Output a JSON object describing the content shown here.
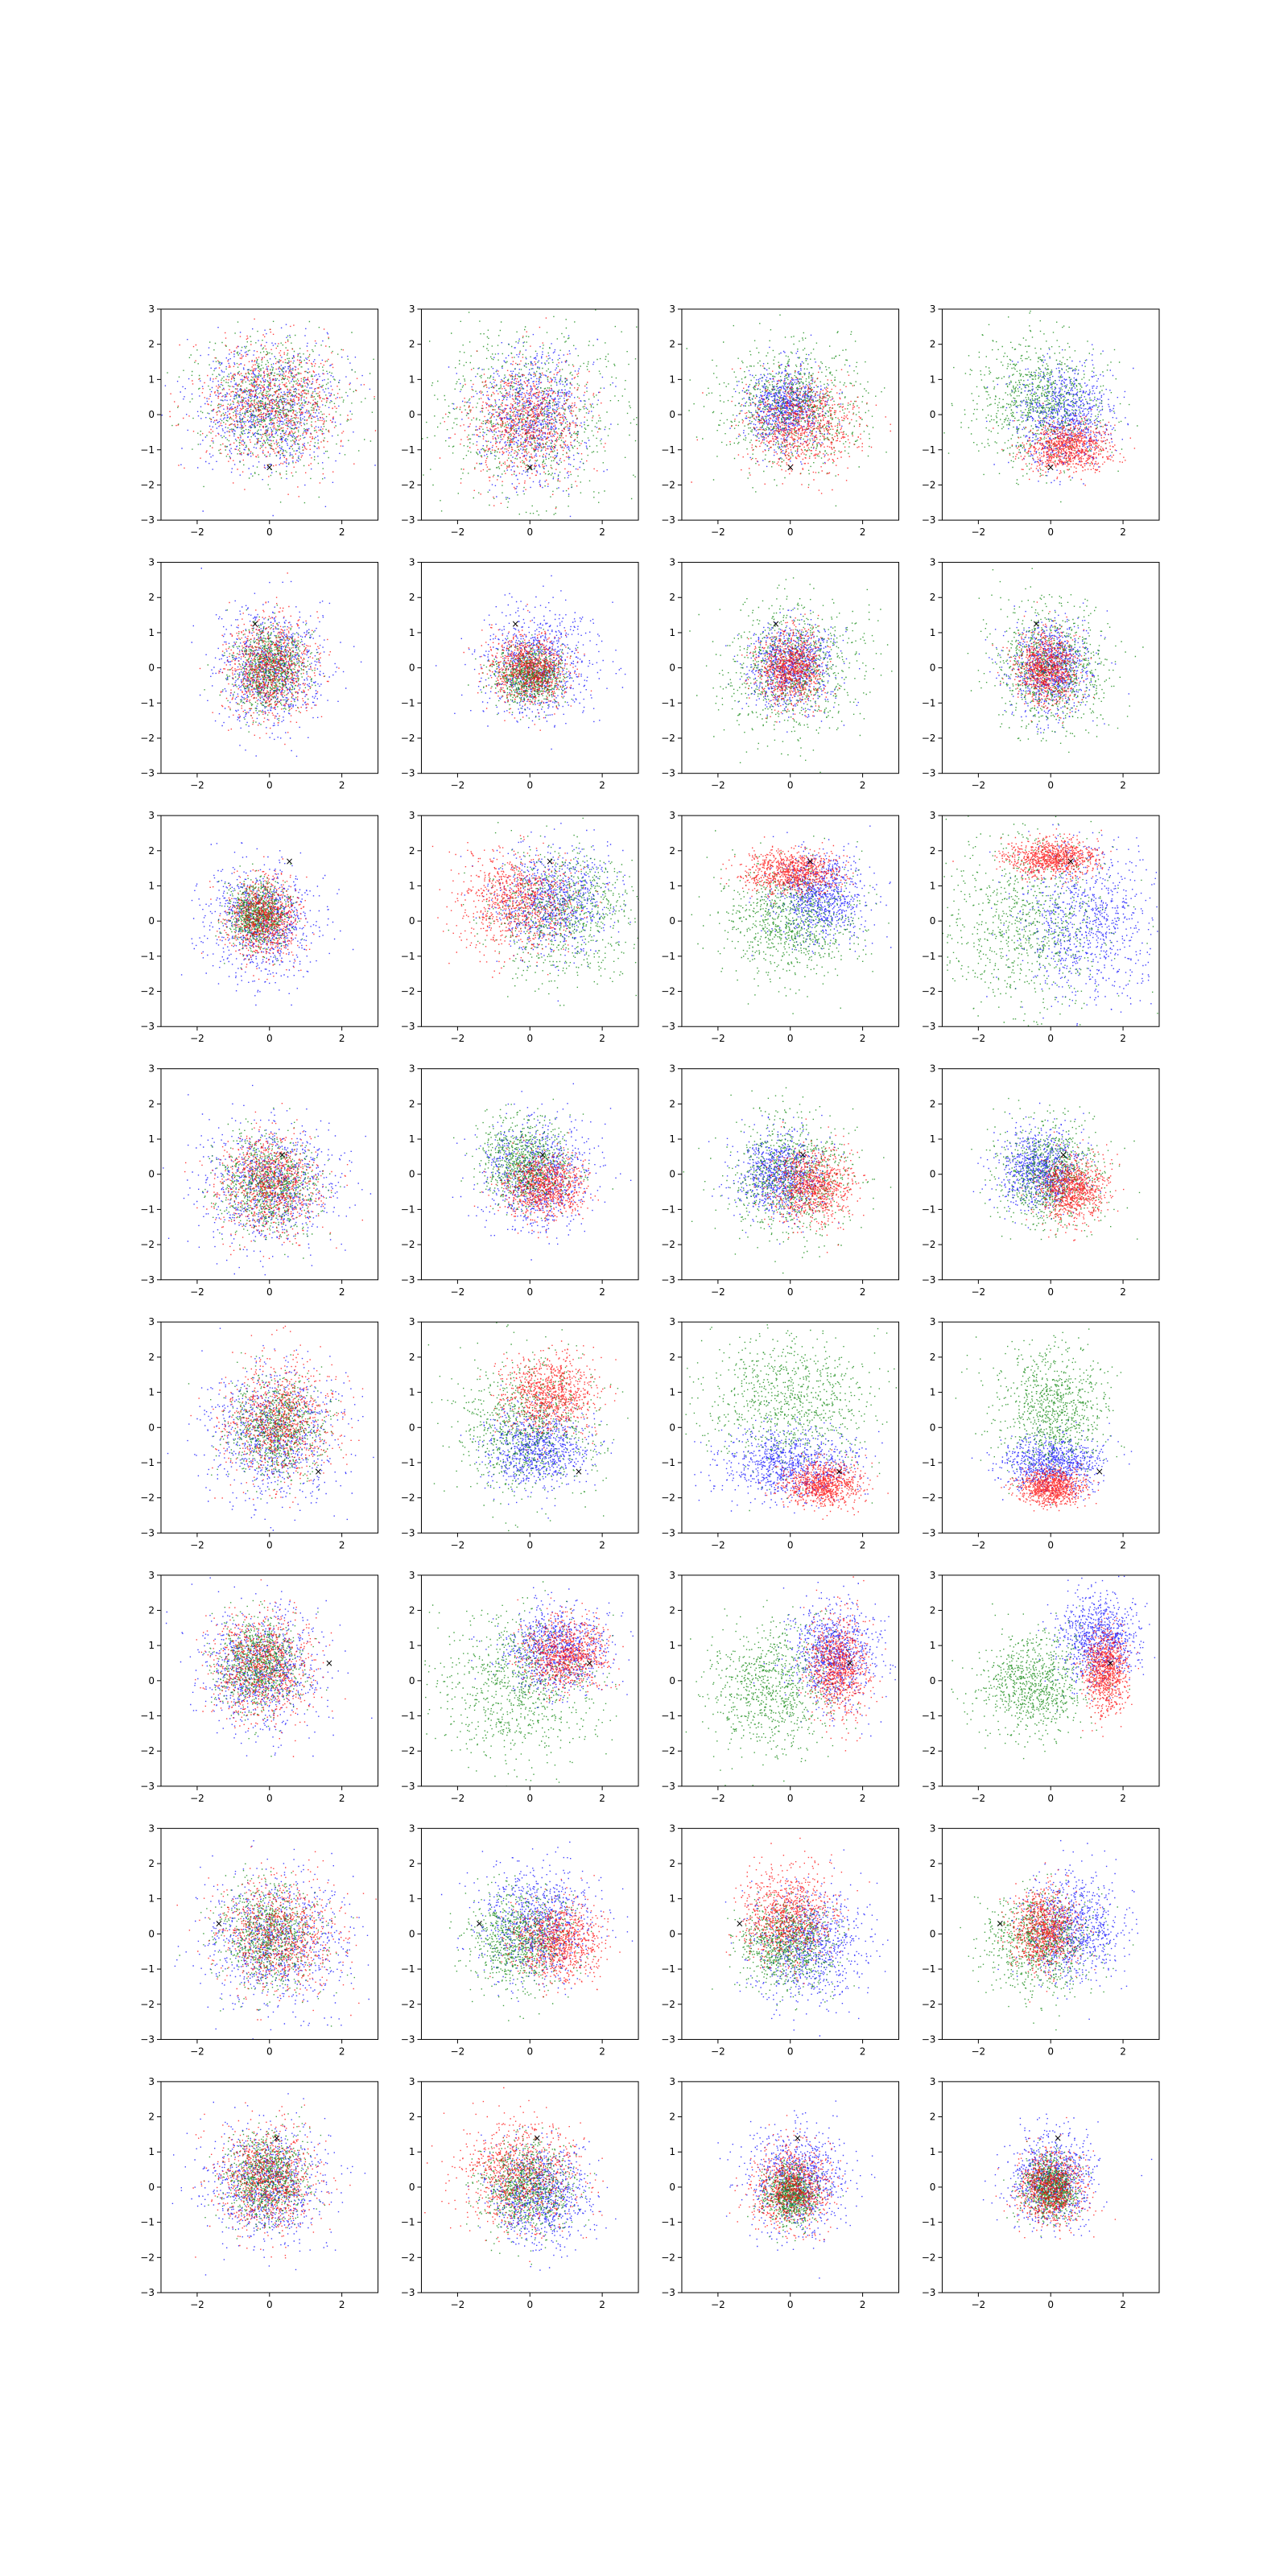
{
  "figure": {
    "rows": 8,
    "cols": 4
  },
  "chart_data": {
    "type": "scatter",
    "description_grid": "8 rows x 4 columns of scatter subplots (cloud of 2-D points in three colours, with one black x marker per row)",
    "xlim": [
      -3,
      3
    ],
    "ylim": [
      -3,
      3
    ],
    "xticks": [
      -2,
      0,
      2
    ],
    "yticks": [
      -3,
      -2,
      -1,
      0,
      1,
      2,
      3
    ],
    "grid": false,
    "legend": "none",
    "series_colors": {
      "blue": "#0000ff",
      "green": "#008000",
      "red": "#ff0000"
    },
    "marker_symbol": "×",
    "marker_color": "#000000",
    "markers_by_row": [
      {
        "x": 0.0,
        "y": -1.5
      },
      {
        "x": -0.4,
        "y": 1.25
      },
      {
        "x": 0.55,
        "y": 1.7
      },
      {
        "x": 0.35,
        "y": 0.55
      },
      {
        "x": 1.35,
        "y": -1.25
      },
      {
        "x": 1.65,
        "y": 0.5
      },
      {
        "x": -1.4,
        "y": 0.3
      },
      {
        "x": 0.2,
        "y": 1.4
      }
    ],
    "panels": [
      [
        {
          "blue": {
            "cx": 0,
            "cy": 0.2,
            "sx": 1,
            "sy": 0.9
          },
          "green": {
            "cx": 0.1,
            "cy": 0.3,
            "sx": 0.95,
            "sy": 0.9
          },
          "red": {
            "cx": 0.1,
            "cy": 0.3,
            "sx": 0.95,
            "sy": 0.9
          }
        },
        {
          "green": {
            "cx": 0,
            "cy": 0,
            "sx": 1.35,
            "sy": 1.25
          },
          "blue": {
            "cx": 0.1,
            "cy": 0,
            "sx": 0.8,
            "sy": 0.9
          },
          "red": {
            "cx": -0.1,
            "cy": -0.2,
            "sx": 0.8,
            "sy": 0.8
          }
        },
        {
          "green": {
            "cx": 0,
            "cy": 0.3,
            "sx": 1,
            "sy": 0.9
          },
          "red": {
            "cx": 0.3,
            "cy": -0.2,
            "sx": 0.75,
            "sy": 0.65
          },
          "blue": {
            "cx": -0.1,
            "cy": 0.2,
            "sx": 0.55,
            "sy": 0.55
          }
        },
        {
          "green": {
            "cx": -0.3,
            "cy": 0.4,
            "sx": 0.9,
            "sy": 0.9
          },
          "blue": {
            "cx": 0.4,
            "cy": 0,
            "sx": 0.65,
            "sy": 0.75
          },
          "red": {
            "cx": 0.5,
            "cy": -0.9,
            "sx": 0.55,
            "sy": 0.35
          }
        }
      ],
      [
        {
          "blue": {
            "cx": 0,
            "cy": 0,
            "sx": 0.7,
            "sy": 0.85
          },
          "red": {
            "cx": 0,
            "cy": 0,
            "sx": 0.6,
            "sy": 0.7
          },
          "green": {
            "cx": 0,
            "cy": 0,
            "sx": 0.5,
            "sy": 0.6
          }
        },
        {
          "blue": {
            "cx": 0.2,
            "cy": 0.1,
            "sx": 0.75,
            "sy": 0.75
          },
          "red": {
            "cx": 0,
            "cy": 0,
            "sx": 0.55,
            "sy": 0.5
          },
          "green": {
            "cx": 0,
            "cy": -0.2,
            "sx": 0.45,
            "sy": 0.4
          }
        },
        {
          "green": {
            "cx": 0,
            "cy": 0,
            "sx": 1,
            "sy": 0.95
          },
          "blue": {
            "cx": 0,
            "cy": 0.1,
            "sx": 0.6,
            "sy": 0.6
          },
          "red": {
            "cx": 0,
            "cy": 0,
            "sx": 0.45,
            "sy": 0.5
          }
        },
        {
          "green": {
            "cx": 0,
            "cy": 0,
            "sx": 0.8,
            "sy": 0.85
          },
          "blue": {
            "cx": 0,
            "cy": 0,
            "sx": 0.55,
            "sy": 0.65
          },
          "red": {
            "cx": -0.1,
            "cy": 0,
            "sx": 0.4,
            "sy": 0.5
          }
        }
      ],
      [
        {
          "blue": {
            "cx": -0.2,
            "cy": 0,
            "sx": 0.75,
            "sy": 0.75
          },
          "red": {
            "cx": -0.2,
            "cy": 0.1,
            "sx": 0.5,
            "sy": 0.55
          },
          "green": {
            "cx": -0.3,
            "cy": 0.2,
            "sx": 0.4,
            "sy": 0.45
          }
        },
        {
          "green": {
            "cx": 0.9,
            "cy": 0.3,
            "sx": 1,
            "sy": 0.9
          },
          "blue": {
            "cx": 0.6,
            "cy": 0.6,
            "sx": 0.8,
            "sy": 0.75
          },
          "red": {
            "cx": -0.4,
            "cy": 0.6,
            "sx": 0.8,
            "sy": 0.7
          }
        },
        {
          "green": {
            "cx": 0,
            "cy": 0,
            "sx": 0.9,
            "sy": 0.8
          },
          "blue": {
            "cx": 0.8,
            "cy": 0.7,
            "sx": 0.6,
            "sy": 0.6
          },
          "red": {
            "cx": 0,
            "cy": 1.4,
            "sx": 0.65,
            "sy": 0.3
          }
        },
        {
          "green": {
            "cx": -0.7,
            "cy": 0,
            "sx": 1.2,
            "sy": 1.3
          },
          "blue": {
            "cx": 0.9,
            "cy": 0,
            "sx": 0.9,
            "sy": 1.1
          },
          "red": {
            "cx": 0,
            "cy": 1.8,
            "sx": 0.6,
            "sy": 0.25
          }
        }
      ],
      [
        {
          "blue": {
            "cx": 0,
            "cy": -0.3,
            "sx": 0.9,
            "sy": 0.85
          },
          "red": {
            "cx": 0,
            "cy": -0.3,
            "sx": 0.7,
            "sy": 0.7
          },
          "green": {
            "cx": 0,
            "cy": -0.3,
            "sx": 0.65,
            "sy": 0.65
          }
        },
        {
          "blue": {
            "cx": 0.2,
            "cy": 0,
            "sx": 0.75,
            "sy": 0.75
          },
          "green": {
            "cx": -0.1,
            "cy": 0.3,
            "sx": 0.6,
            "sy": 0.6
          },
          "red": {
            "cx": 0.4,
            "cy": -0.3,
            "sx": 0.55,
            "sy": 0.45
          }
        },
        {
          "green": {
            "cx": 0,
            "cy": 0,
            "sx": 0.85,
            "sy": 0.85
          },
          "blue": {
            "cx": -0.3,
            "cy": 0,
            "sx": 0.6,
            "sy": 0.6
          },
          "red": {
            "cx": 0.6,
            "cy": -0.3,
            "sx": 0.55,
            "sy": 0.5
          }
        },
        {
          "green": {
            "cx": 0,
            "cy": 0,
            "sx": 0.75,
            "sy": 0.75
          },
          "blue": {
            "cx": -0.3,
            "cy": 0.1,
            "sx": 0.55,
            "sy": 0.55
          },
          "red": {
            "cx": 0.6,
            "cy": -0.4,
            "sx": 0.45,
            "sy": 0.45
          }
        }
      ],
      [
        {
          "blue": {
            "cx": 0.1,
            "cy": -0.1,
            "sx": 0.9,
            "sy": 0.95
          },
          "red": {
            "cx": 0.3,
            "cy": 0.2,
            "sx": 0.75,
            "sy": 0.85
          },
          "green": {
            "cx": 0.2,
            "cy": 0,
            "sx": 0.65,
            "sy": 0.7
          }
        },
        {
          "green": {
            "cx": -0.1,
            "cy": 0,
            "sx": 1,
            "sy": 1
          },
          "red": {
            "cx": 0.5,
            "cy": 1,
            "sx": 0.65,
            "sy": 0.55
          },
          "blue": {
            "cx": 0.2,
            "cy": -0.6,
            "sx": 0.7,
            "sy": 0.55
          }
        },
        {
          "green": {
            "cx": 0,
            "cy": 0.8,
            "sx": 1.15,
            "sy": 1
          },
          "blue": {
            "cx": 0,
            "cy": -1,
            "sx": 0.9,
            "sy": 0.5
          },
          "red": {
            "cx": 0.9,
            "cy": -1.6,
            "sx": 0.5,
            "sy": 0.3
          }
        },
        {
          "green": {
            "cx": 0,
            "cy": 0.5,
            "sx": 0.75,
            "sy": 0.85
          },
          "blue": {
            "cx": 0,
            "cy": -1,
            "sx": 0.7,
            "sy": 0.4
          },
          "red": {
            "cx": 0,
            "cy": -1.7,
            "sx": 0.45,
            "sy": 0.25
          }
        }
      ],
      [
        {
          "blue": {
            "cx": -0.2,
            "cy": 0.3,
            "sx": 0.85,
            "sy": 0.85
          },
          "red": {
            "cx": -0.2,
            "cy": 0.4,
            "sx": 0.7,
            "sy": 0.75
          },
          "green": {
            "cx": -0.3,
            "cy": 0.5,
            "sx": 0.55,
            "sy": 0.65
          }
        },
        {
          "green": {
            "cx": -0.4,
            "cy": -0.2,
            "sx": 1.1,
            "sy": 1.05
          },
          "blue": {
            "cx": 0.7,
            "cy": 0.9,
            "sx": 0.7,
            "sy": 0.6
          },
          "red": {
            "cx": 1,
            "cy": 0.8,
            "sx": 0.55,
            "sy": 0.5
          }
        },
        {
          "green": {
            "cx": -0.5,
            "cy": -0.2,
            "sx": 0.9,
            "sy": 0.9
          },
          "blue": {
            "cx": 1.2,
            "cy": 0.8,
            "sx": 0.6,
            "sy": 0.7
          },
          "red": {
            "cx": 1.3,
            "cy": 0.4,
            "sx": 0.4,
            "sy": 0.7
          }
        },
        {
          "green": {
            "cx": -0.5,
            "cy": -0.1,
            "sx": 0.75,
            "sy": 0.75
          },
          "blue": {
            "cx": 1.3,
            "cy": 1.2,
            "sx": 0.55,
            "sy": 0.65
          },
          "red": {
            "cx": 1.5,
            "cy": 0.3,
            "sx": 0.3,
            "sy": 0.6
          }
        }
      ],
      [
        {
          "blue": {
            "cx": 0.2,
            "cy": -0.2,
            "sx": 1,
            "sy": 0.95
          },
          "red": {
            "cx": 0.2,
            "cy": 0,
            "sx": 0.85,
            "sy": 0.8
          },
          "green": {
            "cx": 0,
            "cy": 0,
            "sx": 0.7,
            "sy": 0.75
          }
        },
        {
          "blue": {
            "cx": 0.2,
            "cy": 0.3,
            "sx": 0.8,
            "sy": 0.8
          },
          "red": {
            "cx": 0.8,
            "cy": -0.2,
            "sx": 0.6,
            "sy": 0.55
          },
          "green": {
            "cx": -0.3,
            "cy": -0.2,
            "sx": 0.65,
            "sy": 0.7
          }
        },
        {
          "blue": {
            "cx": 0.5,
            "cy": -0.3,
            "sx": 0.75,
            "sy": 0.8
          },
          "red": {
            "cx": -0.1,
            "cy": 0.5,
            "sx": 0.6,
            "sy": 0.65
          },
          "green": {
            "cx": -0.1,
            "cy": -0.3,
            "sx": 0.65,
            "sy": 0.6
          }
        },
        {
          "blue": {
            "cx": 0.6,
            "cy": 0.2,
            "sx": 0.7,
            "sy": 0.75
          },
          "green": {
            "cx": -0.3,
            "cy": -0.2,
            "sx": 0.7,
            "sy": 0.7
          },
          "red": {
            "cx": -0.2,
            "cy": 0.1,
            "sx": 0.45,
            "sy": 0.55
          }
        }
      ],
      [
        {
          "blue": {
            "cx": -0.1,
            "cy": 0.1,
            "sx": 0.8,
            "sy": 0.8
          },
          "red": {
            "cx": -0.1,
            "cy": 0.2,
            "sx": 0.65,
            "sy": 0.75
          },
          "green": {
            "cx": -0.1,
            "cy": 0.3,
            "sx": 0.55,
            "sy": 0.6
          }
        },
        {
          "red": {
            "cx": -0.3,
            "cy": 0.4,
            "sx": 0.8,
            "sy": 0.8
          },
          "blue": {
            "cx": 0.3,
            "cy": -0.2,
            "sx": 0.7,
            "sy": 0.7
          },
          "green": {
            "cx": -0.1,
            "cy": 0,
            "sx": 0.6,
            "sy": 0.65
          }
        },
        {
          "blue": {
            "cx": 0.2,
            "cy": 0.2,
            "sx": 0.7,
            "sy": 0.7
          },
          "red": {
            "cx": 0,
            "cy": 0,
            "sx": 0.55,
            "sy": 0.6
          },
          "green": {
            "cx": 0,
            "cy": -0.2,
            "sx": 0.35,
            "sy": 0.4
          }
        },
        {
          "blue": {
            "cx": 0,
            "cy": 0.2,
            "sx": 0.6,
            "sy": 0.65
          },
          "red": {
            "cx": 0,
            "cy": 0,
            "sx": 0.45,
            "sy": 0.5
          },
          "green": {
            "cx": 0,
            "cy": 0,
            "sx": 0.35,
            "sy": 0.4
          }
        }
      ]
    ]
  }
}
